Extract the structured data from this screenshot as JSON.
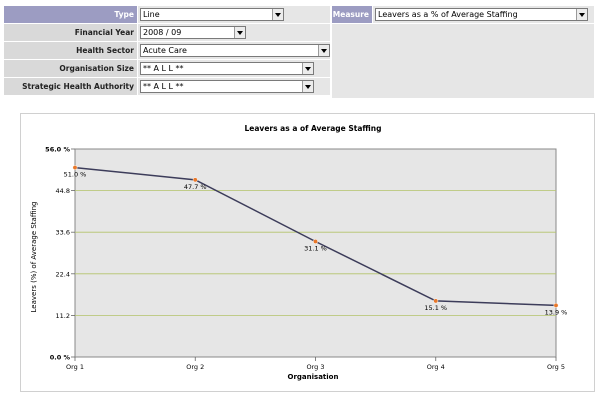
{
  "filters": {
    "type": {
      "label": "Type",
      "value": "Line"
    },
    "financial_year": {
      "label": "Financial Year",
      "value": "2008 / 09"
    },
    "health_sector": {
      "label": "Health Sector",
      "value": "Acute Care"
    },
    "organisation_size": {
      "label": "Organisation Size",
      "value": "** A L L **"
    },
    "strategic_health_authority": {
      "label": "Strategic Health Authority",
      "value": "** A L L **"
    },
    "measure": {
      "label": "Measure",
      "value": "Leavers as a % of Average Staffing"
    }
  },
  "colors": {
    "label_accent": "#9c9cc2",
    "label_grey": "#d9d9d9",
    "plot_background": "#e6e6e6",
    "line": "#3c3c5a",
    "marker": "#e8782a",
    "gridline": "#b4c46a"
  },
  "chart_data": {
    "type": "line",
    "title": "Leavers as a of Average Staffing",
    "xlabel": "Organisation",
    "ylabel": "Leavers (%) of Average Staffing",
    "categories": [
      "Org 1",
      "Org 2",
      "Org 3",
      "Org 4",
      "Org 5"
    ],
    "values": [
      51.0,
      47.7,
      31.1,
      15.1,
      13.9
    ],
    "data_labels": [
      "51.0 %",
      "47.7 %",
      "31.1 %",
      "15.1 %",
      "13.9 %"
    ],
    "yticks": [
      0.0,
      11.2,
      22.4,
      33.6,
      44.8,
      56.0
    ],
    "ytick_labels": [
      "0.0 %",
      "11.2",
      "22.4",
      "33.6",
      "44.8",
      "56.0 %"
    ],
    "ylim": [
      0,
      56
    ],
    "grid": true
  }
}
